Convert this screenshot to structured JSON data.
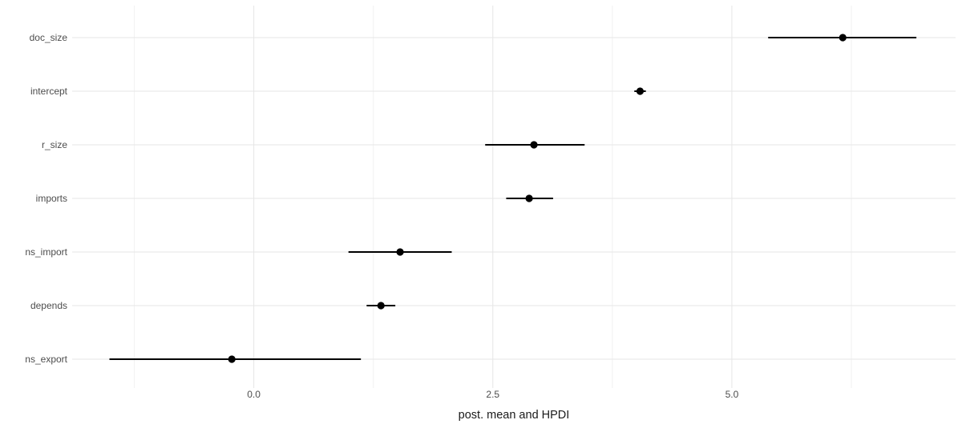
{
  "figure": {
    "background": "#ffffff",
    "axis_title_color": "#1a1a1a",
    "tick_label_color": "#4d4d4d",
    "category_label_color": "#4d4d4d",
    "grid_major_color": "#e6e6e6",
    "grid_minor_color": "#f2f2f2",
    "point_color": "#000000",
    "interval_color": "#000000"
  },
  "chart_data": {
    "type": "scatter",
    "subtype": "horizontal-pointrange-forest-plot",
    "title": "",
    "xlabel": "post. mean and HPDI",
    "ylabel": "",
    "grid": true,
    "legend": "none",
    "xlim": [
      -1.9,
      7.34
    ],
    "categories": [
      "doc_size",
      "intercept",
      "r_size",
      "imports",
      "ns_import",
      "depends",
      "ns_export"
    ],
    "series": [
      {
        "name": "post. mean and HPDI",
        "points": [
          {
            "category": "doc_size",
            "mean": 6.16,
            "hpdi_low": 5.38,
            "hpdi_high": 6.93
          },
          {
            "category": "intercept",
            "mean": 4.04,
            "hpdi_low": 3.98,
            "hpdi_high": 4.1
          },
          {
            "category": "r_size",
            "mean": 2.93,
            "hpdi_low": 2.42,
            "hpdi_high": 3.46
          },
          {
            "category": "imports",
            "mean": 2.88,
            "hpdi_low": 2.64,
            "hpdi_high": 3.13
          },
          {
            "category": "ns_import",
            "mean": 1.53,
            "hpdi_low": 0.99,
            "hpdi_high": 2.07
          },
          {
            "category": "depends",
            "mean": 1.33,
            "hpdi_low": 1.18,
            "hpdi_high": 1.48
          },
          {
            "category": "ns_export",
            "mean": -0.23,
            "hpdi_low": -1.51,
            "hpdi_high": 1.12
          }
        ]
      }
    ],
    "x_ticks_major": [
      {
        "value": 0,
        "label": "0.0"
      },
      {
        "value": 2.5,
        "label": "2.5"
      },
      {
        "value": 5,
        "label": "5.0"
      }
    ],
    "x_gridlines_minor": [
      -1.25,
      1.25,
      3.75,
      6.25
    ]
  }
}
